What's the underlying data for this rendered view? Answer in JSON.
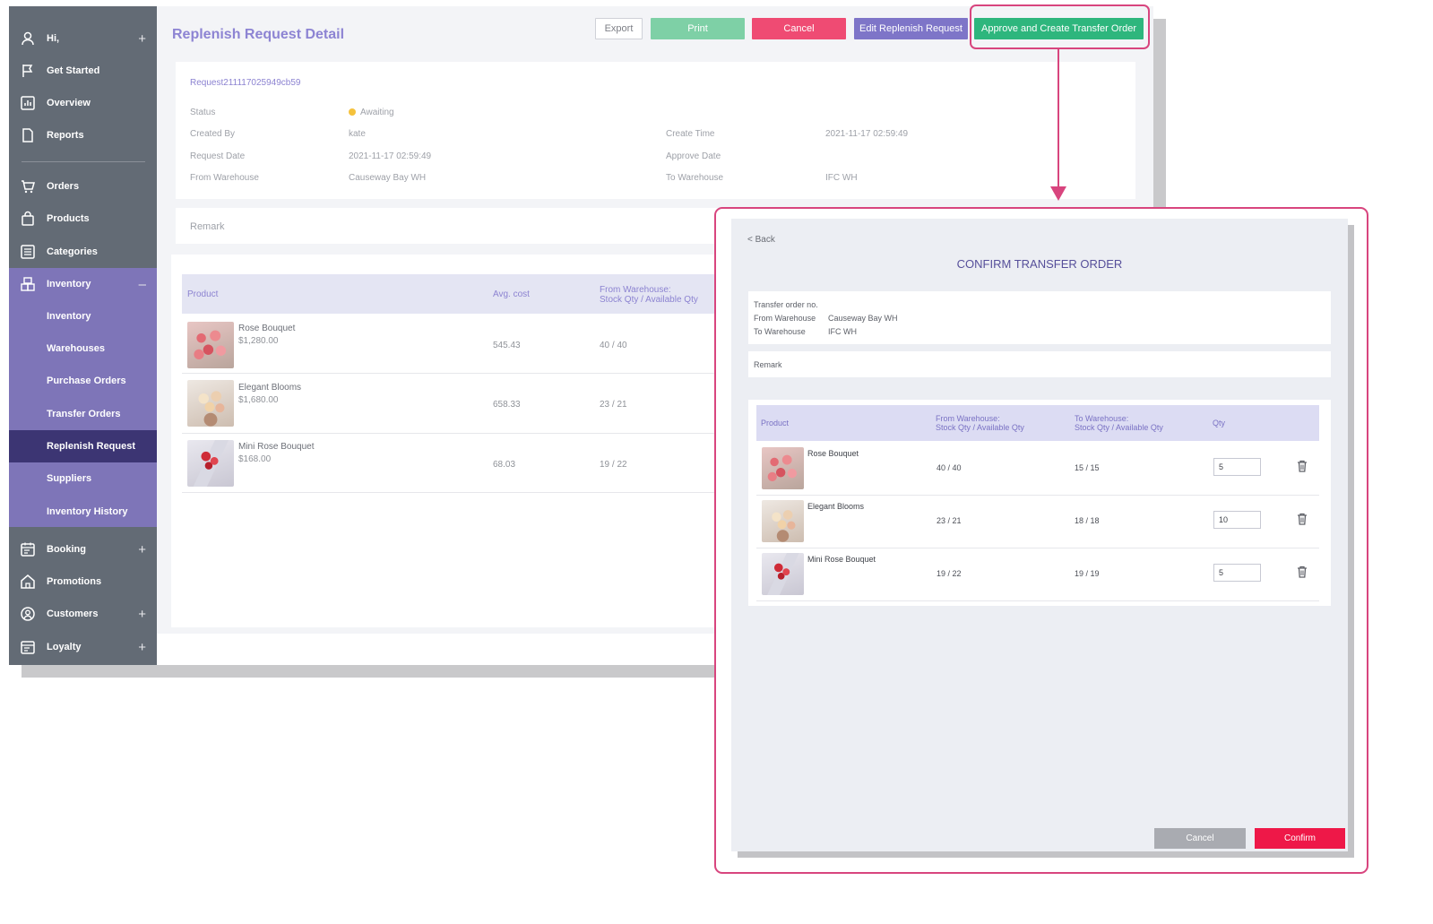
{
  "sidebar": {
    "greeting": "Hi,",
    "items": [
      {
        "label": "Get Started",
        "icon": "flag-icon"
      },
      {
        "label": "Overview",
        "icon": "chart-icon"
      },
      {
        "label": "Reports",
        "icon": "document-icon"
      },
      {
        "label": "Orders",
        "icon": "cart-icon"
      },
      {
        "label": "Products",
        "icon": "bag-icon"
      },
      {
        "label": "Categories",
        "icon": "list-icon"
      }
    ],
    "inventory": {
      "label": "Inventory",
      "collapse_symbol": "–",
      "sub_items": [
        "Inventory",
        "Warehouses",
        "Purchase Orders",
        "Transfer Orders",
        "Replenish Request",
        "Suppliers",
        "Inventory History"
      ],
      "active": "Replenish Request"
    },
    "bottom_items": [
      {
        "label": "Booking",
        "expand": "+"
      },
      {
        "label": "Promotions",
        "expand": ""
      },
      {
        "label": "Customers",
        "expand": "+"
      },
      {
        "label": "Loyalty",
        "expand": "+"
      }
    ],
    "expand_symbol": "+"
  },
  "header": {
    "title": "Replenish Request Detail",
    "buttons": {
      "export": "Export",
      "print": "Print",
      "cancel": "Cancel",
      "edit": "Edit Replenish Request",
      "approve": "Approve and Create Transfer Order"
    }
  },
  "colors": {
    "accent_purple": "#8d84d3",
    "sidebar_dark": "#636b75",
    "sidebar_active": "#3c3573",
    "print_green": "#7ed0a6",
    "approve_green": "#2eb67d",
    "cancel_pink": "#ef4b73",
    "confirm_red": "#ee1848",
    "callout_pink": "#d8457e"
  },
  "request": {
    "number": "Request211117025949cb59",
    "status_label": "Status",
    "status_value": "Awaiting",
    "created_by_label": "Created By",
    "created_by": "kate",
    "create_time_label": "Create Time",
    "create_time": "2021-11-17 02:59:49",
    "request_date_label": "Request Date",
    "request_date": "2021-11-17 02:59:49",
    "approve_date_label": "Approve Date",
    "approve_date": "",
    "from_wh_label": "From Warehouse",
    "from_wh": "Causeway Bay WH",
    "to_wh_label": "To Warehouse",
    "to_wh": "IFC WH",
    "remark_label": "Remark"
  },
  "detail_table": {
    "headers": {
      "product": "Product",
      "avg_cost": "Avg. cost",
      "from_wh_line1": "From Warehouse:",
      "from_wh_line2": "Stock Qty / Available Qty"
    },
    "rows": [
      {
        "name": "Rose Bouquet",
        "price": "$1,280.00",
        "avg_cost": "545.43",
        "from_qty": "40 / 40"
      },
      {
        "name": "Elegant Blooms",
        "price": "$1,680.00",
        "avg_cost": "658.33",
        "from_qty": "23 / 21"
      },
      {
        "name": "Mini Rose Bouquet",
        "price": "$168.00",
        "avg_cost": "68.03",
        "from_qty": "19 / 22"
      }
    ]
  },
  "modal": {
    "back": "< Back",
    "title": "CONFIRM TRANSFER ORDER",
    "transfer_no_label": "Transfer order no.",
    "from_label": "From Warehouse",
    "from_value": "Causeway Bay WH",
    "to_label": "To Warehouse",
    "to_value": "IFC WH",
    "remark_label": "Remark",
    "table_headers": {
      "product": "Product",
      "from_line1": "From Warehouse:",
      "from_line2": "Stock Qty / Available Qty",
      "to_line1": "To Warehouse:",
      "to_line2": "Stock Qty / Available Qty",
      "qty": "Qty"
    },
    "rows": [
      {
        "name": "Rose Bouquet",
        "from_qty": "40 / 40",
        "to_qty": "15 / 15",
        "qty": "5"
      },
      {
        "name": "Elegant Blooms",
        "from_qty": "23 / 21",
        "to_qty": "18 / 18",
        "qty": "10"
      },
      {
        "name": "Mini Rose Bouquet",
        "from_qty": "19 / 22",
        "to_qty": "19 / 19",
        "qty": "5"
      }
    ],
    "cancel_label": "Cancel",
    "confirm_label": "Confirm"
  }
}
